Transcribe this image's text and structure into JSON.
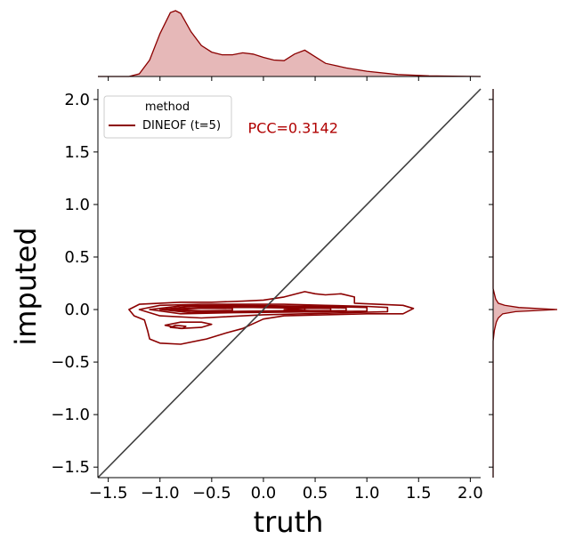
{
  "chart_data": {
    "type": "kde_joint",
    "xlabel": "truth",
    "ylabel": "imputed",
    "xlim": [
      -1.6,
      2.1
    ],
    "ylim": [
      -1.6,
      2.1
    ],
    "x_ticks": [
      -1.5,
      -1.0,
      -0.5,
      0.0,
      0.5,
      1.0,
      1.5,
      2.0
    ],
    "x_tick_labels": [
      "−1.5",
      "−1.0",
      "−0.5",
      "0.0",
      "0.5",
      "1.0",
      "1.5",
      "2.0"
    ],
    "y_ticks": [
      -1.5,
      -1.0,
      -0.5,
      0.0,
      0.5,
      1.0,
      1.5,
      2.0
    ],
    "y_tick_labels": [
      "−1.5",
      "−1.0",
      "−0.5",
      "0.0",
      "0.5",
      "1.0",
      "1.5",
      "2.0"
    ],
    "legend": {
      "title": "method",
      "position": "upper-left",
      "entries": [
        {
          "label": "DINEOF (t=5)",
          "color": "#8b0000"
        }
      ]
    },
    "annotation": {
      "text": "PCC=0.3142",
      "x": -0.15,
      "y": 1.68,
      "color": "#b00000"
    },
    "identity_line": {
      "from": [
        -1.6,
        -1.6
      ],
      "to": [
        2.1,
        2.1
      ],
      "color": "#404040"
    },
    "series_color": "#8b0000",
    "fill_color": "#e6b8b8",
    "contours": [
      [
        [
          -1.3,
          0.0
        ],
        [
          -1.2,
          0.05
        ],
        [
          -1.0,
          0.06
        ],
        [
          -0.8,
          0.07
        ],
        [
          -0.5,
          0.07
        ],
        [
          -0.2,
          0.08
        ],
        [
          0.0,
          0.09
        ],
        [
          0.2,
          0.12
        ],
        [
          0.4,
          0.17
        ],
        [
          0.5,
          0.15
        ],
        [
          0.6,
          0.14
        ],
        [
          0.75,
          0.15
        ],
        [
          0.88,
          0.12
        ],
        [
          0.88,
          0.06
        ],
        [
          1.1,
          0.05
        ],
        [
          1.35,
          0.04
        ],
        [
          1.45,
          0.01
        ],
        [
          1.35,
          -0.04
        ],
        [
          1.0,
          -0.04
        ],
        [
          0.6,
          -0.05
        ],
        [
          0.2,
          -0.06
        ],
        [
          0.0,
          -0.09
        ],
        [
          -0.2,
          -0.18
        ],
        [
          -0.35,
          -0.22
        ],
        [
          -0.55,
          -0.28
        ],
        [
          -0.8,
          -0.33
        ],
        [
          -1.0,
          -0.32
        ],
        [
          -1.1,
          -0.28
        ],
        [
          -1.12,
          -0.2
        ],
        [
          -1.15,
          -0.1
        ],
        [
          -1.25,
          -0.06
        ],
        [
          -1.3,
          0.0
        ]
      ],
      [
        [
          -1.2,
          0.0
        ],
        [
          -1.0,
          0.04
        ],
        [
          -0.6,
          0.05
        ],
        [
          -0.2,
          0.05
        ],
        [
          0.2,
          0.05
        ],
        [
          0.6,
          0.04
        ],
        [
          1.0,
          0.03
        ],
        [
          1.2,
          0.02
        ],
        [
          1.2,
          -0.02
        ],
        [
          0.8,
          -0.03
        ],
        [
          0.4,
          -0.04
        ],
        [
          0.0,
          -0.05
        ],
        [
          -0.4,
          -0.07
        ],
        [
          -0.6,
          -0.08
        ],
        [
          -1.0,
          -0.06
        ],
        [
          -1.2,
          0.0
        ]
      ],
      [
        [
          -1.1,
          0.0
        ],
        [
          -0.8,
          0.035
        ],
        [
          -0.3,
          0.04
        ],
        [
          0.2,
          0.035
        ],
        [
          0.6,
          0.03
        ],
        [
          1.0,
          0.02
        ],
        [
          1.0,
          -0.015
        ],
        [
          0.6,
          -0.02
        ],
        [
          0.2,
          -0.025
        ],
        [
          -0.3,
          -0.03
        ],
        [
          -0.8,
          -0.04
        ],
        [
          -1.1,
          0.0
        ]
      ],
      [
        [
          -1.0,
          0.0
        ],
        [
          -0.7,
          0.03
        ],
        [
          -0.2,
          0.03
        ],
        [
          0.3,
          0.025
        ],
        [
          0.8,
          0.015
        ],
        [
          0.8,
          -0.01
        ],
        [
          0.3,
          -0.015
        ],
        [
          -0.2,
          -0.02
        ],
        [
          -0.7,
          -0.03
        ],
        [
          -1.0,
          0.0
        ]
      ],
      [
        [
          -0.95,
          0.0
        ],
        [
          -0.6,
          0.02
        ],
        [
          -0.1,
          0.02
        ],
        [
          0.4,
          0.012
        ],
        [
          0.4,
          -0.008
        ],
        [
          -0.1,
          -0.015
        ],
        [
          -0.6,
          -0.02
        ],
        [
          -0.95,
          0.0
        ]
      ],
      [
        [
          -0.9,
          0.0
        ],
        [
          -0.6,
          0.012
        ],
        [
          -0.3,
          0.01
        ],
        [
          -0.3,
          -0.008
        ],
        [
          -0.6,
          -0.012
        ],
        [
          -0.9,
          0.0
        ]
      ],
      [
        [
          0.2,
          0.0
        ],
        [
          0.45,
          0.012
        ],
        [
          0.65,
          0.01
        ],
        [
          0.65,
          -0.008
        ],
        [
          0.45,
          -0.01
        ],
        [
          0.2,
          0.0
        ]
      ],
      [
        [
          -0.95,
          -0.15
        ],
        [
          -0.8,
          -0.12
        ],
        [
          -0.6,
          -0.12
        ],
        [
          -0.5,
          -0.14
        ],
        [
          -0.6,
          -0.17
        ],
        [
          -0.8,
          -0.18
        ],
        [
          -0.95,
          -0.15
        ]
      ],
      [
        [
          -0.9,
          -0.17
        ],
        [
          -0.85,
          -0.15
        ],
        [
          -0.75,
          -0.16
        ],
        [
          -0.78,
          -0.18
        ],
        [
          -0.9,
          -0.17
        ]
      ]
    ],
    "top_marginal": {
      "x": [
        -1.6,
        -1.3,
        -1.2,
        -1.1,
        -1.0,
        -0.9,
        -0.85,
        -0.8,
        -0.7,
        -0.6,
        -0.5,
        -0.4,
        -0.3,
        -0.2,
        -0.1,
        0.0,
        0.1,
        0.2,
        0.3,
        0.4,
        0.5,
        0.6,
        0.8,
        1.0,
        1.3,
        1.6,
        2.1
      ],
      "density": [
        0.0,
        0.0,
        0.04,
        0.25,
        0.65,
        0.97,
        1.0,
        0.96,
        0.68,
        0.47,
        0.37,
        0.33,
        0.33,
        0.36,
        0.34,
        0.29,
        0.25,
        0.24,
        0.34,
        0.4,
        0.3,
        0.2,
        0.13,
        0.08,
        0.03,
        0.01,
        0.0
      ]
    },
    "right_marginal": {
      "y": [
        -1.6,
        -0.3,
        -0.2,
        -0.12,
        -0.08,
        -0.04,
        -0.02,
        0.0,
        0.02,
        0.04,
        0.06,
        0.1,
        0.15,
        0.2,
        2.1
      ],
      "density": [
        0.0,
        0.0,
        0.02,
        0.05,
        0.08,
        0.15,
        0.35,
        1.0,
        0.4,
        0.18,
        0.08,
        0.04,
        0.02,
        0.0,
        0.0
      ]
    }
  }
}
